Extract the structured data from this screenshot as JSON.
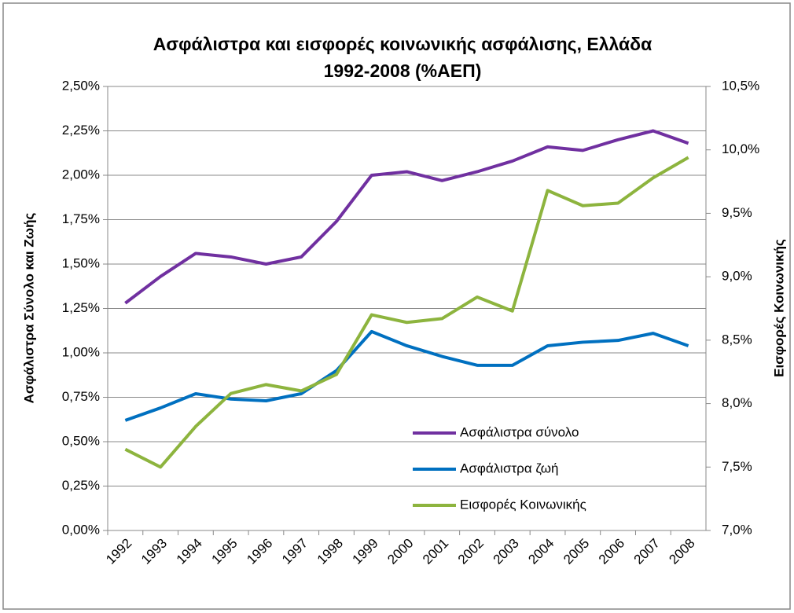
{
  "chart_data": {
    "type": "line",
    "title": [
      "Ασφάλιστρα και εισφορές κοινωνικής ασφάλισης, Ελλάδα",
      "1992-2008 (%ΑΕΠ)"
    ],
    "y_label": "Ασφάλιστρα Σύνολο και Ζωής",
    "y2_label": "Εισφορές Κοινωνικής",
    "categories": [
      "1992",
      "1993",
      "1994",
      "1995",
      "1996",
      "1997",
      "1998",
      "1999",
      "2000",
      "2001",
      "2002",
      "2003",
      "2004",
      "2005",
      "2006",
      "2007",
      "2008"
    ],
    "series": [
      {
        "name": "Ασφάλιστρα σύνολο",
        "color": "#7030a0",
        "values": [
          1.28,
          1.43,
          1.56,
          1.54,
          1.5,
          1.54,
          1.74,
          2.0,
          2.02,
          1.97,
          2.02,
          2.08,
          2.16,
          2.14,
          2.2,
          2.25,
          2.18
        ]
      },
      {
        "name": "Ασφάλιστρα ζωή",
        "color": "#0070c0",
        "values": [
          0.62,
          0.69,
          0.77,
          0.74,
          0.73,
          0.77,
          0.9,
          1.12,
          1.04,
          0.98,
          0.93,
          0.93,
          1.04,
          1.06,
          1.07,
          1.11,
          1.04
        ]
      },
      {
        "name": "Εισφορές Κοινωνικής",
        "color": "#8db43e",
        "axis": "y2",
        "values": [
          7.64,
          7.5,
          7.82,
          8.08,
          8.15,
          8.1,
          8.23,
          8.7,
          8.64,
          8.67,
          8.84,
          8.73,
          9.68,
          9.56,
          9.58,
          9.78,
          9.94
        ]
      }
    ],
    "ylim": [
      0,
      2.5
    ],
    "yticks": [
      {
        "value": 0,
        "label": "0,00%"
      },
      {
        "value": 0.25,
        "label": "0,25%"
      },
      {
        "value": 0.5,
        "label": "0,50%"
      },
      {
        "value": 0.75,
        "label": "0,75%"
      },
      {
        "value": 1,
        "label": "1,00%"
      },
      {
        "value": 1.25,
        "label": "1,25%"
      },
      {
        "value": 1.5,
        "label": "1,50%"
      },
      {
        "value": 1.75,
        "label": "1,75%"
      },
      {
        "value": 2,
        "label": "2,00%"
      },
      {
        "value": 2.25,
        "label": "2,25%"
      },
      {
        "value": 2.5,
        "label": "2,50%"
      }
    ],
    "y2lim": [
      7,
      10.5
    ],
    "y2ticks": [
      {
        "value": 7,
        "label": "7,0%"
      },
      {
        "value": 7.5,
        "label": "7,5%"
      },
      {
        "value": 8,
        "label": "8,0%"
      },
      {
        "value": 8.5,
        "label": "8,5%"
      },
      {
        "value": 9,
        "label": "9,0%"
      },
      {
        "value": 9.5,
        "label": "9,5%"
      },
      {
        "value": 10,
        "label": "10,0%"
      },
      {
        "value": 10.5,
        "label": "10,5%"
      }
    ],
    "grid": true,
    "legend": "lower-right"
  }
}
